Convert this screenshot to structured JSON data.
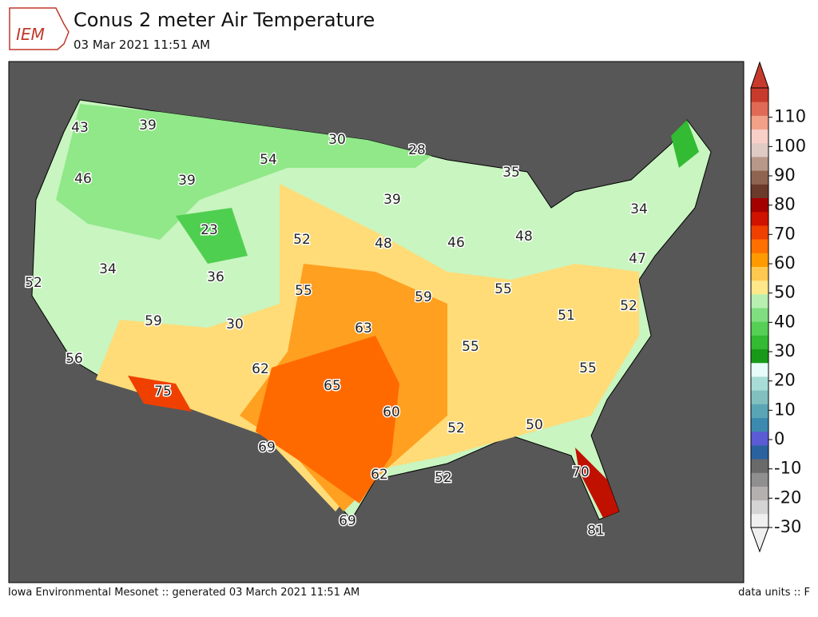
{
  "header": {
    "title": "Conus 2 meter Air Temperature",
    "subtitle": "03 Mar 2021 11:51 AM",
    "logo_text": "IEM"
  },
  "footer": {
    "left": "Iowa Environmental Mesonet :: generated 03 March 2021 11:51 AM",
    "right": "data units :: F"
  },
  "map": {
    "station_values": [
      43,
      39,
      30,
      28,
      35,
      54,
      46,
      39,
      39,
      34,
      23,
      52,
      48,
      46,
      48,
      47,
      34,
      52,
      36,
      55,
      59,
      55,
      51,
      52,
      59,
      30,
      63,
      55,
      56,
      62,
      55,
      65,
      75,
      60,
      52,
      50,
      69,
      62,
      52,
      70,
      69,
      81
    ]
  },
  "colorbar": {
    "lim": [
      -30,
      120
    ],
    "ticks": [
      -30,
      -20,
      -10,
      0,
      10,
      20,
      30,
      40,
      50,
      60,
      70,
      80,
      90,
      100,
      110
    ],
    "colors": [
      "#f0f0f0",
      "#d4d4d4",
      "#b5b0b0",
      "#8f8f8f",
      "#6a6a6a",
      "#2a62a0",
      "#5b5bd6",
      "#3d8ab0",
      "#5aa5b5",
      "#82c0c0",
      "#a8dcd6",
      "#e6fcf8",
      "#189a18",
      "#33bb33",
      "#55d055",
      "#80de80",
      "#b8f0b0",
      "#ffe88a",
      "#ffc850",
      "#ff9a00",
      "#ff7000",
      "#f04000",
      "#d01200",
      "#a50000",
      "#6b3a2a",
      "#8f6450",
      "#b89888",
      "#e0cac4",
      "#f8d0c8",
      "#f2a088",
      "#e06a55",
      "#c83b2c"
    ]
  }
}
